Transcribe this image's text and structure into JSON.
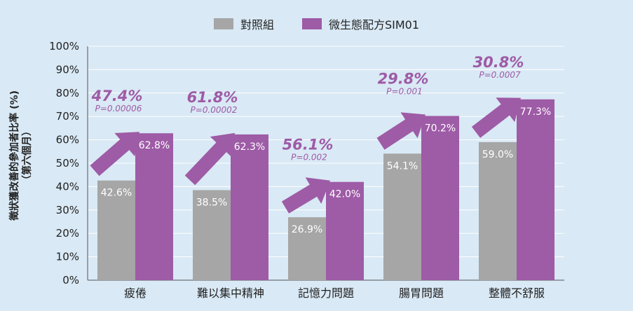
{
  "chart_data": {
    "type": "bar",
    "categories": [
      "疲倦",
      "難以集中精神",
      "記憶力問題",
      "腸胃問題",
      "整體不舒服"
    ],
    "series": [
      {
        "name": "對照組",
        "values": [
          42.6,
          38.5,
          26.9,
          54.1,
          59.0
        ],
        "labels": [
          "42.6%",
          "38.5%",
          "26.9%",
          "54.1%",
          "59.0%"
        ],
        "color": "#a6a6a6"
      },
      {
        "name": "微生態配方SIM01",
        "values": [
          62.8,
          62.3,
          42.0,
          70.2,
          77.3
        ],
        "labels": [
          "62.8%",
          "62.3%",
          "42.0%",
          "70.2%",
          "77.3%"
        ],
        "color": "#9e5ba6"
      }
    ],
    "annotations": [
      {
        "percent": "47.4%",
        "p": "P=0.00006"
      },
      {
        "percent": "61.8%",
        "p": "P=0.00002"
      },
      {
        "percent": "56.1%",
        "p": "P=0.002"
      },
      {
        "percent": "29.8%",
        "p": "P=0.001"
      },
      {
        "percent": "30.8%",
        "p": "P=0.0007"
      }
    ],
    "ylabel_line1": "徵狀獲改善的參加者比率 (%)",
    "ylabel_line2": "（第六個月）",
    "ylim": [
      0,
      100
    ],
    "yticks": [
      0,
      10,
      20,
      30,
      40,
      50,
      60,
      70,
      80,
      90,
      100
    ],
    "ytick_labels": [
      "0%",
      "10%",
      "20%",
      "30%",
      "40%",
      "50%",
      "60%",
      "70%",
      "80%",
      "90%",
      "100%"
    ],
    "grid": true,
    "legend_position": "top-center"
  },
  "colors": {
    "background": "#d9e9f5",
    "arrow": "#9e5ba6",
    "annotation_text": "#9e5ba6"
  }
}
